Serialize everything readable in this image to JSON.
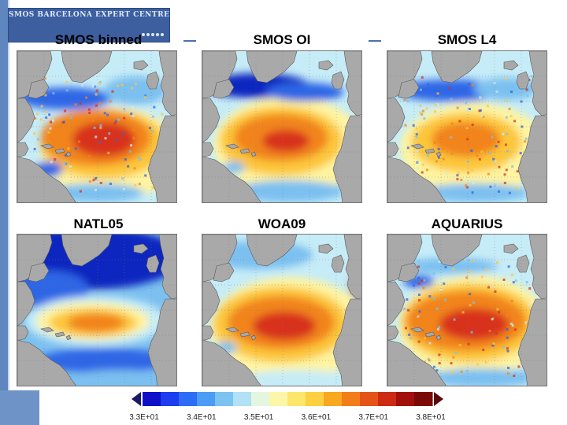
{
  "header": {
    "logo_text": "SMOS BARCELONA EXPERT CENTRE",
    "logo_icon": "satellite-icon"
  },
  "panels": [
    {
      "title": "SMOS binned",
      "icon": "atlantic-sss-map"
    },
    {
      "title": "SMOS OI",
      "icon": "atlantic-sss-map"
    },
    {
      "title": "SMOS L4",
      "icon": "atlantic-sss-map"
    },
    {
      "title": "NATL05",
      "icon": "atlantic-sss-map"
    },
    {
      "title": "WOA09",
      "icon": "atlantic-sss-map"
    },
    {
      "title": "AQUARIUS",
      "icon": "atlantic-sss-map"
    }
  ],
  "colorbar": {
    "tick_labels": [
      "3.3E+01",
      "3.4E+01",
      "3.5E+01",
      "3.6E+01",
      "3.7E+01",
      "3.8E+01"
    ],
    "colors": [
      "#1010c8",
      "#1e3cf0",
      "#2d6cf5",
      "#4a9cf5",
      "#7cc3f2",
      "#b2e0f5",
      "#e4f6e0",
      "#fdf6a8",
      "#fde76a",
      "#fcd040",
      "#f9a820",
      "#f27d1a",
      "#e45418",
      "#cc2a14",
      "#a2100e",
      "#7a0a08"
    ],
    "left_arrow_color": "#1a1a66",
    "right_arrow_color": "#5a0808"
  },
  "map_colors": {
    "land": "#a9a9a9",
    "very_fresh": "#1028c0",
    "fresh": "#2f66e6",
    "mid_low": "#7cc0f0",
    "mid": "#c6ecf7",
    "mid_high": "#fff4a0",
    "salty": "#fcc63a",
    "saltier": "#f2841c",
    "max": "#d8321a"
  }
}
